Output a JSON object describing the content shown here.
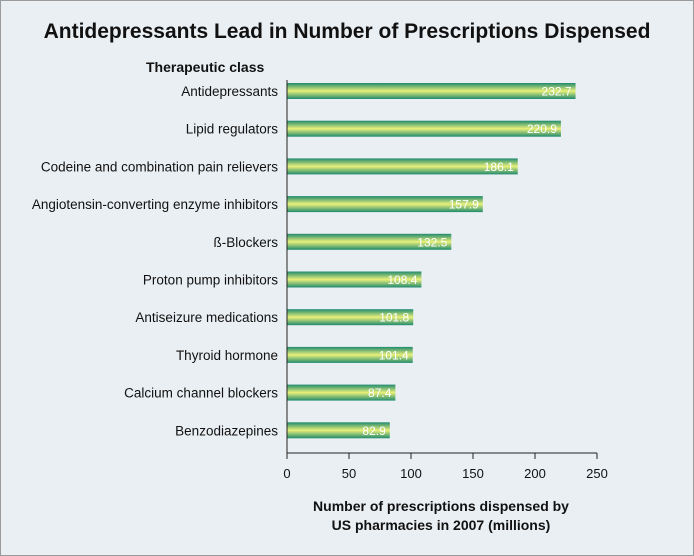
{
  "chart_data": {
    "type": "bar",
    "orientation": "horizontal",
    "title": "Antidepressants Lead in Number of Prescriptions Dispensed",
    "category_axis_title": "Therapeutic class",
    "xlabel_lines": [
      "Number of prescriptions dispensed by",
      "US pharmacies in 2007 (millions)"
    ],
    "categories": [
      "Antidepressants",
      "Lipid regulators",
      "Codeine and combination pain relievers",
      "Angiotensin-converting enzyme inhibitors",
      "ß-Blockers",
      "Proton pump inhibitors",
      "Antiseizure medications",
      "Thyroid hormone",
      "Calcium channel blockers",
      "Benzodiazepines"
    ],
    "values": [
      232.7,
      220.9,
      186.1,
      157.9,
      132.5,
      108.4,
      101.8,
      101.4,
      87.4,
      82.9
    ],
    "value_labels": [
      "232.7",
      "220.9",
      "186.1",
      "157.9",
      "132.5",
      "108.4",
      "101.8",
      "101.4",
      "87.4",
      "82.9"
    ],
    "xlim": [
      0,
      250
    ],
    "xticks": [
      0,
      50,
      100,
      150,
      200,
      250
    ],
    "grid": false,
    "legend": "none",
    "colors": {
      "bar_edge": "#1f8a6e",
      "bar_center": "#e9f07a",
      "background": "#eaeff3",
      "value_text": "#ffffff"
    }
  }
}
